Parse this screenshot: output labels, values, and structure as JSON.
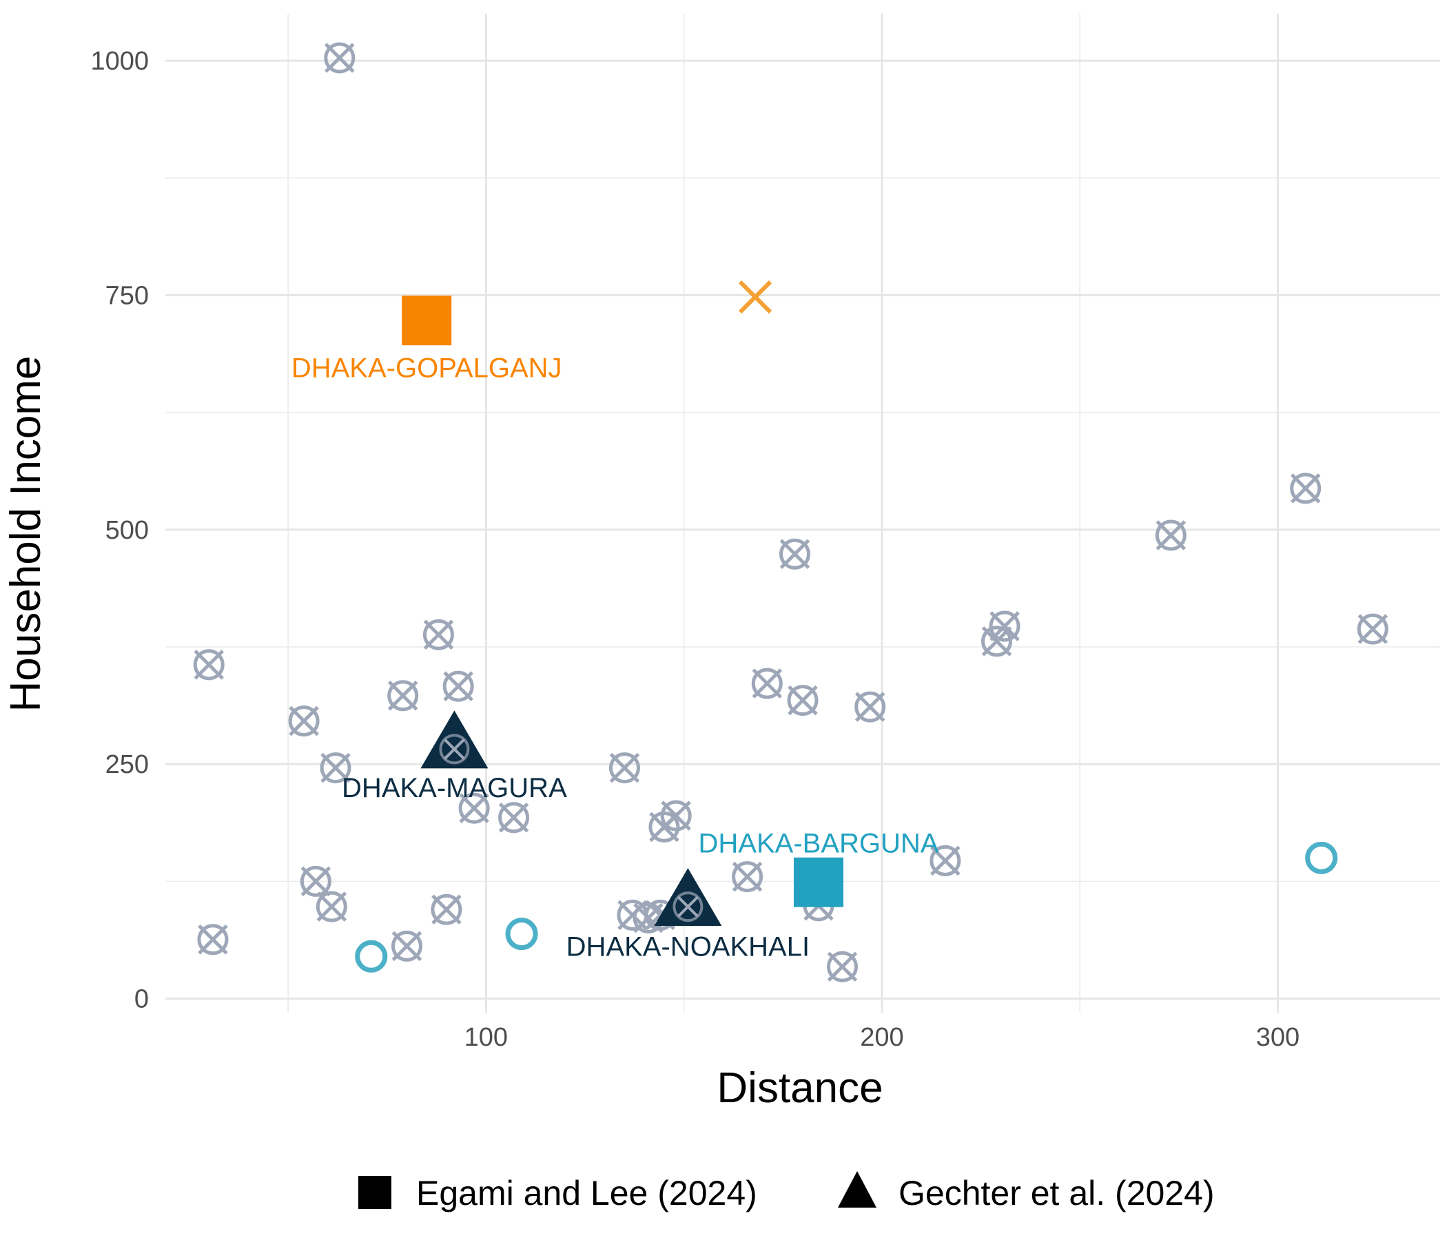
{
  "chart_data": {
    "type": "scatter",
    "xlabel": "Distance",
    "ylabel": "Household Income",
    "xlim": [
      19,
      341
    ],
    "ylim": [
      -15,
      1050
    ],
    "x_ticks": [
      100,
      200,
      300
    ],
    "y_ticks": [
      0,
      250,
      500,
      750,
      1000
    ],
    "grid": true,
    "colors": {
      "candidate": "#9ea7b8",
      "orange": "#f98400",
      "orange_light": "#f5a033",
      "teal": "#22a1c1",
      "teal_light": "#4bb0c8",
      "navy": "#0b2c42"
    },
    "candidates": [
      {
        "x": 63,
        "y": 1003
      },
      {
        "x": 30,
        "y": 356
      },
      {
        "x": 31,
        "y": 63
      },
      {
        "x": 54,
        "y": 296
      },
      {
        "x": 62,
        "y": 246
      },
      {
        "x": 57,
        "y": 125
      },
      {
        "x": 61,
        "y": 98
      },
      {
        "x": 79,
        "y": 323
      },
      {
        "x": 80,
        "y": 56
      },
      {
        "x": 88,
        "y": 388
      },
      {
        "x": 93,
        "y": 333
      },
      {
        "x": 92,
        "y": 266
      },
      {
        "x": 90,
        "y": 95
      },
      {
        "x": 97,
        "y": 203
      },
      {
        "x": 107,
        "y": 193
      },
      {
        "x": 135,
        "y": 246
      },
      {
        "x": 137,
        "y": 89
      },
      {
        "x": 141,
        "y": 86
      },
      {
        "x": 144,
        "y": 89
      },
      {
        "x": 145,
        "y": 183
      },
      {
        "x": 148,
        "y": 195
      },
      {
        "x": 151,
        "y": 98
      },
      {
        "x": 166,
        "y": 130
      },
      {
        "x": 171,
        "y": 336
      },
      {
        "x": 178,
        "y": 474
      },
      {
        "x": 180,
        "y": 318
      },
      {
        "x": 184,
        "y": 99
      },
      {
        "x": 190,
        "y": 34
      },
      {
        "x": 197,
        "y": 311
      },
      {
        "x": 216,
        "y": 147
      },
      {
        "x": 229,
        "y": 381
      },
      {
        "x": 231,
        "y": 397
      },
      {
        "x": 273,
        "y": 494
      },
      {
        "x": 307,
        "y": 544
      },
      {
        "x": 324,
        "y": 394
      }
    ],
    "highlight_x": [
      {
        "x": 168,
        "y": 748,
        "color": "orange_light"
      }
    ],
    "open_circles": [
      {
        "x": 71,
        "y": 45
      },
      {
        "x": 109,
        "y": 69
      },
      {
        "x": 311,
        "y": 150
      }
    ],
    "selected": [
      {
        "shape": "square",
        "x": 85,
        "y": 723,
        "color": "orange",
        "label": "DHAKA-GOPALGANJ",
        "label_x": 85,
        "label_y": 673
      },
      {
        "shape": "square",
        "x": 184,
        "y": 124,
        "color": "teal",
        "label": "DHAKA-BARGUNA",
        "label_x": 184,
        "label_y": 166
      },
      {
        "shape": "triangle",
        "x": 92,
        "y": 266,
        "color": "navy",
        "label": "DHAKA-MAGURA",
        "label_x": 92,
        "label_y": 225
      },
      {
        "shape": "triangle",
        "x": 151,
        "y": 98,
        "color": "navy",
        "label": "DHAKA-NOAKHALI",
        "label_x": 151,
        "label_y": 56
      }
    ],
    "legend": {
      "placement": "bottom",
      "entries": [
        {
          "shape": "square",
          "label": "Egami and Lee (2024)"
        },
        {
          "shape": "triangle",
          "label": "Gechter et al. (2024)"
        }
      ]
    }
  }
}
